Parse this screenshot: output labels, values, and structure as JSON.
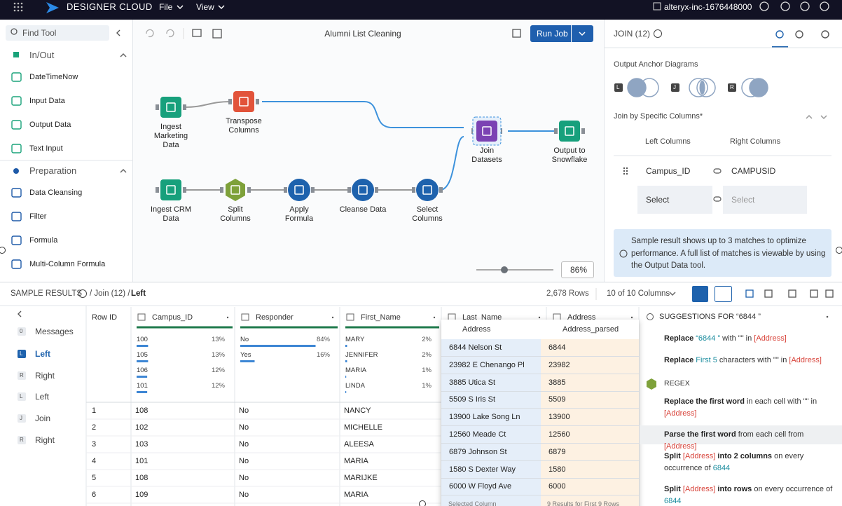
{
  "topbar": {
    "brand": "DESIGNER CLOUD",
    "menus": [
      "File",
      "View"
    ],
    "account": "alteryx-inc-1676448000"
  },
  "tools": {
    "search": "Find Tool",
    "groups": [
      {
        "name": "In/Out",
        "items": [
          "DateTimeNow",
          "Input Data",
          "Output Data",
          "Text Input"
        ]
      },
      {
        "name": "Preparation",
        "items": [
          "Data Cleansing",
          "Filter",
          "Formula",
          "Multi-Column Formula"
        ]
      }
    ]
  },
  "canvas": {
    "title": "Alumni List Cleaning",
    "run_button": "Run Job",
    "zoom": "86%",
    "nodes": [
      {
        "label": "Ingest Marketing Data"
      },
      {
        "label": "Transpose Columns"
      },
      {
        "label": "Join Datasets"
      },
      {
        "label": "Output to Snowflake"
      },
      {
        "label": "Ingest CRM Data"
      },
      {
        "label": "Split Columns"
      },
      {
        "label": "Apply Formula"
      },
      {
        "label": "Cleanse Data"
      },
      {
        "label": "Select Columns"
      }
    ]
  },
  "join_panel": {
    "title": "JOIN (12)",
    "anchor_heading": "Output Anchor Diagrams",
    "anchors": [
      "L",
      "J",
      "R"
    ],
    "join_heading": "Join by Specific Columns*",
    "left_header": "Left Columns",
    "right_header": "Right Columns",
    "rows": [
      [
        "Campus_ID",
        "CAMPUSID"
      ],
      [
        "Select",
        "Select"
      ]
    ],
    "info": "Sample result shows up to 3 matches to optimize performance. A full list of matches is viewable by using the Output Data tool."
  },
  "results": {
    "heading": "SAMPLE RESULTS",
    "crumb": "/ Join (12) /",
    "crumb_current": "Left",
    "row_count": "2,678 Rows",
    "column_count": "10 of 10 Columns",
    "active_nav": 1,
    "nav": [
      {
        "badge": "0",
        "label": "Messages"
      },
      {
        "badge": "L",
        "label": "Left"
      },
      {
        "badge": "R",
        "label": "Right"
      },
      {
        "badge": "L",
        "label": "Left"
      },
      {
        "badge": "J",
        "label": "Join"
      },
      {
        "badge": "R",
        "label": "Right"
      }
    ],
    "table": {
      "headers": [
        "Row ID",
        "Campus_ID",
        "Responder",
        "First_Name",
        "Last_Name",
        "Address"
      ],
      "profiles": [
        [
          {
            "name": "100",
            "value": 13,
            "label": "13%"
          },
          {
            "name": "105",
            "value": 13,
            "label": "13%"
          },
          {
            "name": "106",
            "value": 12,
            "label": "12%"
          },
          {
            "name": "101",
            "value": 12,
            "label": "12%"
          }
        ],
        [
          {
            "name": "No",
            "value": 84,
            "label": "84%"
          },
          {
            "name": "Yes",
            "value": 16,
            "label": "16%"
          }
        ],
        [
          {
            "name": "MARY",
            "value": 2,
            "label": "2%"
          },
          {
            "name": "JENNIFER",
            "value": 2,
            "label": "2%"
          },
          {
            "name": "MARIA",
            "value": 1,
            "label": "1%"
          },
          {
            "name": "LINDA",
            "value": 1,
            "label": "1%"
          }
        ]
      ],
      "rows": [
        [
          1,
          108,
          "No",
          "NANCY"
        ],
        [
          2,
          102,
          "No",
          "MICHELLE"
        ],
        [
          3,
          103,
          "No",
          "ALEESA"
        ],
        [
          4,
          101,
          "No",
          "MARIA"
        ],
        [
          5,
          108,
          "No",
          "MARIJKE"
        ],
        [
          6,
          109,
          "No",
          "MARIA"
        ]
      ]
    },
    "popup": {
      "headers": [
        "Address",
        "Address_parsed"
      ],
      "rows": [
        [
          "6844 Nelson St",
          "6844"
        ],
        [
          "23982 E Chenango Pl",
          "23982"
        ],
        [
          "3885 Utica St",
          "3885"
        ],
        [
          "5509 S Iris St",
          "5509"
        ],
        [
          "13900 Lake Song Ln",
          "13900"
        ],
        [
          "12560 Meade Ct",
          "12560"
        ],
        [
          "6879 Johnson St",
          "6879"
        ],
        [
          "1580 S Dexter Way",
          "1580"
        ],
        [
          "6000 W Floyd Ave",
          "6000"
        ]
      ],
      "footer": [
        "Selected Column",
        "9 Results for First 9 Rows"
      ]
    }
  },
  "suggestions": {
    "title": "SUGGESTIONS FOR “6844 ”",
    "groups": [
      {
        "items": [
          {
            "parts": [
              {
                "text": "Replace",
                "style": "bold"
              },
              {
                "text": " “6844 ”",
                "style": "value"
              },
              {
                "text": " with \"\" in "
              },
              {
                "text": "[Address]",
                "style": "field"
              }
            ]
          },
          {
            "parts": [
              {
                "text": "Replace",
                "style": "bold"
              },
              {
                "text": " First 5",
                "style": "value"
              },
              {
                "text": " characters with \"\" in "
              },
              {
                "text": "[Address]",
                "style": "field"
              }
            ]
          }
        ]
      },
      {
        "heading": "REGEX",
        "items": [
          {
            "parts": [
              {
                "text": "Replace the first word",
                "style": "bold"
              },
              {
                "text": " in each cell with \"\" in "
              },
              {
                "text": "[Address]",
                "style": "field"
              }
            ]
          },
          {
            "selected": true,
            "parts": [
              {
                "text": "Parse the first word",
                "style": "bold"
              },
              {
                "text": " from each cell from "
              },
              {
                "text": "[Address]",
                "style": "field"
              }
            ]
          },
          {
            "parts": [
              {
                "text": "Split ",
                "style": "bold"
              },
              {
                "text": "[Address]",
                "style": "field"
              },
              {
                "text": " into 2 columns",
                "style": "bold"
              },
              {
                "text": " on every occurrence of "
              },
              {
                "text": "6844",
                "style": "value"
              }
            ]
          },
          {
            "parts": [
              {
                "text": "Split ",
                "style": "bold"
              },
              {
                "text": "[Address]",
                "style": "field"
              },
              {
                "text": " into rows",
                "style": "bold"
              },
              {
                "text": " on every occurrence of "
              },
              {
                "text": "6844",
                "style": "value"
              }
            ]
          }
        ]
      }
    ]
  }
}
